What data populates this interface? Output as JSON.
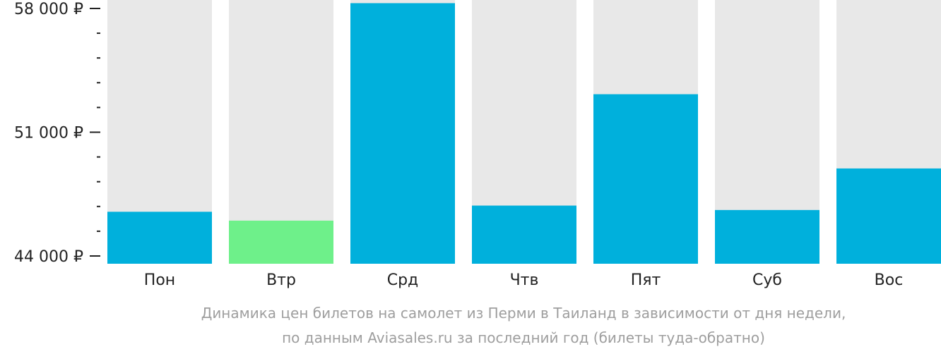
{
  "chart_data": {
    "type": "bar",
    "categories": [
      "Пон",
      "Втр",
      "Срд",
      "Чтв",
      "Пят",
      "Суб",
      "Вос"
    ],
    "values": [
      46500,
      46000,
      58300,
      46850,
      53150,
      46600,
      48950
    ],
    "highlight_index": 1,
    "ylim": [
      44000,
      58000
    ],
    "y_major_ticks": [
      44000,
      51000,
      58000
    ],
    "y_tick_labels": [
      "44 000 ₽",
      "51 000 ₽",
      "58 000 ₽"
    ],
    "y_minor_step": 1400,
    "grid": false,
    "background_bars": true
  },
  "colors": {
    "bar": "#00b0dc",
    "bar_highlight": "#6ef08a",
    "bar_background": "#e8e8e8",
    "text": "#222222",
    "caption": "#9e9e9e"
  },
  "caption": {
    "line1": "Динамика цен билетов на самолет из Перми в Таиланд в зависимости от дня недели,",
    "line2": "по данным Aviasales.ru за последний год (билеты туда-обратно)"
  }
}
